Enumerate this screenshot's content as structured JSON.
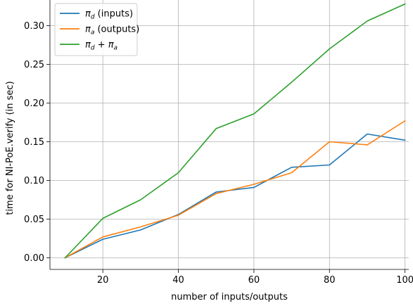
{
  "chart_data": {
    "type": "line",
    "title": "",
    "xlabel": "number of inputs/outputs",
    "ylabel": "time for NI-PoE.verify (in sec)",
    "xlim": [
      6,
      101
    ],
    "ylim": [
      -0.015,
      0.335
    ],
    "xticks": [
      20,
      40,
      60,
      80,
      100
    ],
    "yticks": [
      0.0,
      0.05,
      0.1,
      0.15,
      0.2,
      0.25,
      0.3
    ],
    "ytick_labels": [
      "0.00",
      "0.05",
      "0.10",
      "0.15",
      "0.20",
      "0.25",
      "0.30"
    ],
    "grid": true,
    "legend_position": "top-left",
    "x": [
      10,
      20,
      30,
      40,
      50,
      60,
      70,
      80,
      90,
      100
    ],
    "series": [
      {
        "name": "π_d (inputs)",
        "legend": {
          "symbol": "π",
          "sub": "d",
          "rest": " (inputs)"
        },
        "color": "#1f77b4",
        "values": [
          0.0,
          0.024,
          0.036,
          0.056,
          0.085,
          0.091,
          0.117,
          0.12,
          0.16,
          0.152
        ]
      },
      {
        "name": "π_a (outputs)",
        "legend": {
          "symbol": "π",
          "sub": "a",
          "rest": " (outputs)"
        },
        "color": "#ff7f0e",
        "values": [
          0.0,
          0.027,
          0.04,
          0.055,
          0.083,
          0.095,
          0.11,
          0.15,
          0.146,
          0.177
        ]
      },
      {
        "name": "π_d + π_a",
        "legend": {
          "symbol": "π",
          "sub": "d",
          "rest": " + ",
          "symbol2": "π",
          "sub2": "a"
        },
        "color": "#2ca02c",
        "values": [
          0.0,
          0.051,
          0.075,
          0.11,
          0.167,
          0.186,
          0.227,
          0.27,
          0.306,
          0.328
        ]
      }
    ]
  }
}
